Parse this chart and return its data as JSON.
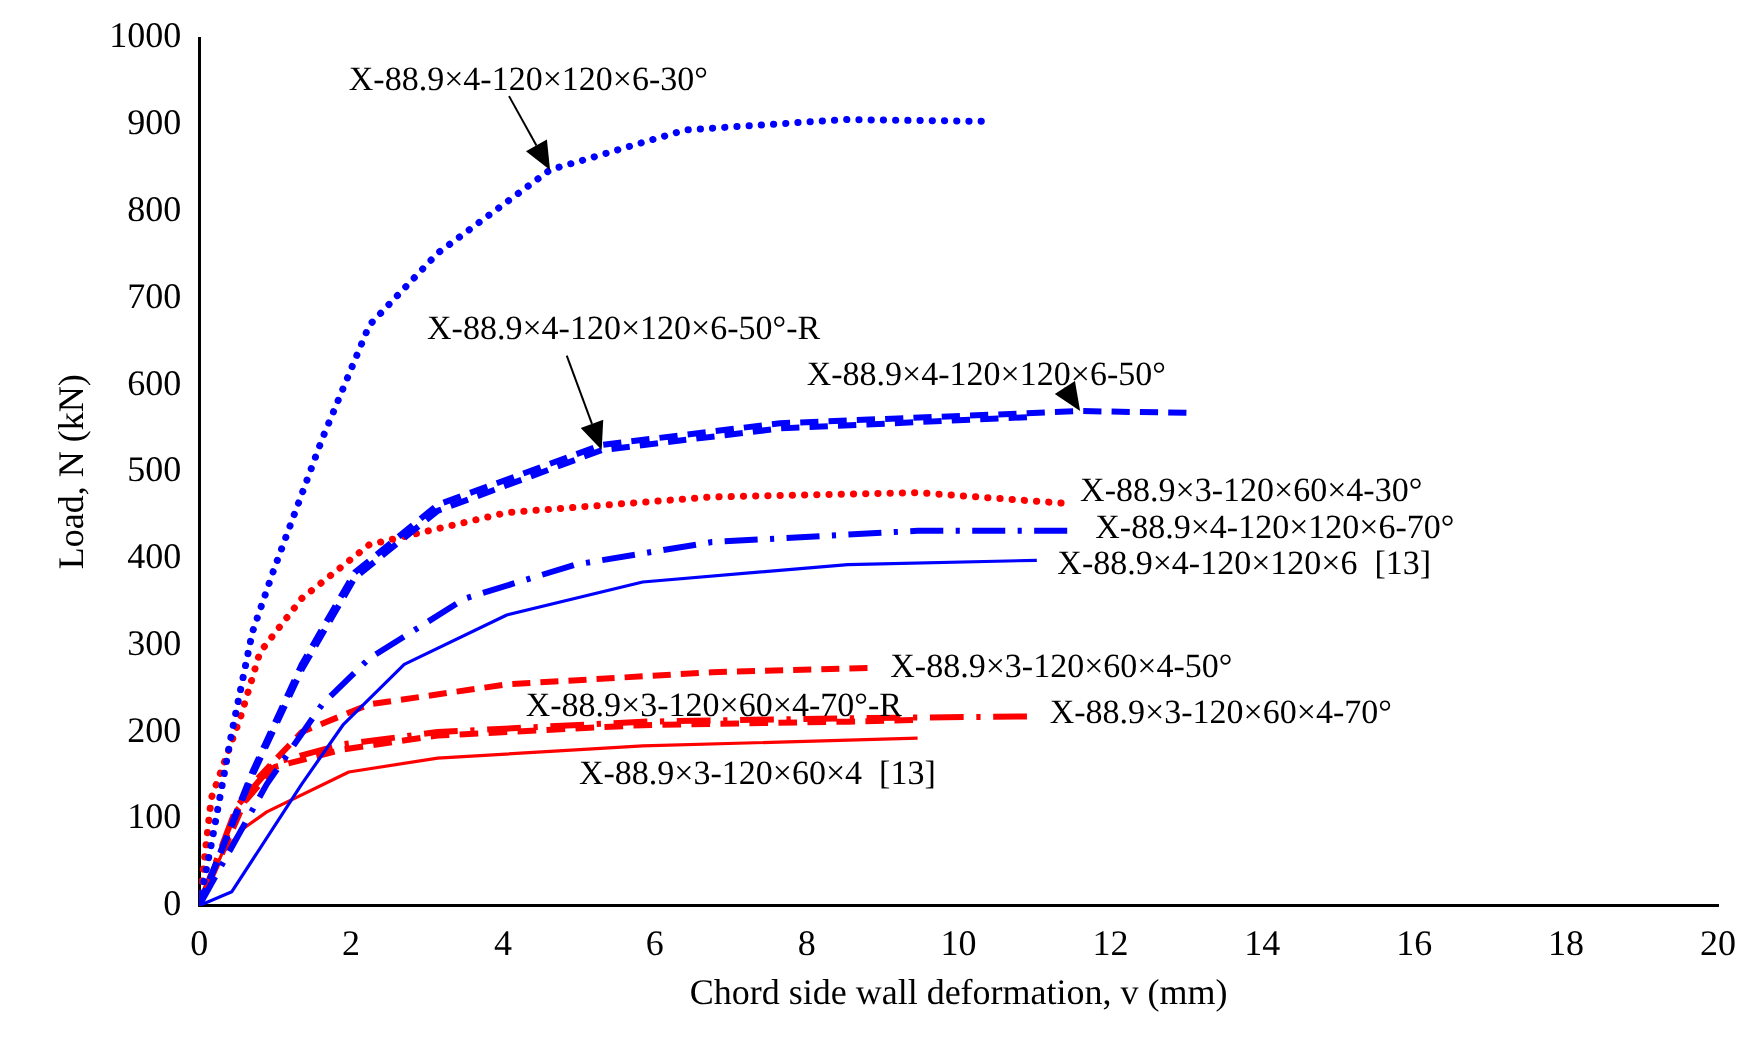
{
  "chart_data": {
    "type": "line",
    "xlabel": "Chord side wall deformation, v (mm)",
    "ylabel": "Load, N (kN)",
    "xlim": [
      0,
      20
    ],
    "xticks": [
      0,
      2,
      4,
      6,
      8,
      10,
      12,
      14,
      16,
      18,
      20
    ],
    "ylim": [
      0,
      1000
    ],
    "yticks": [
      0,
      100,
      200,
      300,
      400,
      500,
      600,
      700,
      800,
      900,
      1000
    ],
    "grid": false,
    "legend": false,
    "marker": "none",
    "series": [
      {
        "name": "X-88.9×4-120×120×6-30°",
        "color": "#0000ff",
        "line_style": "dotted",
        "x": [
          0,
          0.16,
          0.43,
          0.7,
          0.97,
          1.62,
          2.24,
          3.14,
          4.62,
          6.4,
          8.5,
          10.3
        ],
        "values": [
          0,
          71,
          200,
          315,
          384,
          538,
          669,
          752,
          848,
          894,
          906,
          904
        ]
      },
      {
        "name": "X-88.9×4-120×120×6-50°",
        "color": "#0000ff",
        "line_style": "dashed",
        "x": [
          0,
          0.7,
          1.35,
          2.05,
          3.14,
          5.3,
          7.65,
          11.6,
          13
        ],
        "values": [
          0,
          154,
          278,
          384,
          462,
          531,
          556,
          570,
          568
        ]
      },
      {
        "name": "X-88.9×4-120×120×6-50°-R",
        "color": "#0000ff",
        "line_style": "dashed",
        "x": [
          0,
          0.7,
          1.35,
          2.05,
          3.14,
          5.3,
          7.65,
          10.9
        ],
        "values": [
          0,
          150,
          272,
          378,
          455,
          525,
          550,
          563
        ]
      },
      {
        "name": "X-88.9×3-120×60×4-30°",
        "color": "#ff0000",
        "line_style": "dotted",
        "x": [
          0,
          0.16,
          0.54,
          0.8,
          1.35,
          2.24,
          4.05,
          6.75,
          9.46,
          11.35
        ],
        "values": [
          0,
          124,
          216,
          292,
          354,
          416,
          453,
          471,
          476,
          464
        ]
      },
      {
        "name": "X-88.9×4-120×120×6-70°",
        "color": "#0000ff",
        "line_style": "dashdot",
        "x": [
          0,
          0.89,
          1.62,
          2.24,
          3.5,
          4.95,
          6.75,
          9.46,
          11.43
        ],
        "values": [
          0,
          140,
          232,
          285,
          354,
          393,
          419,
          432,
          432
        ]
      },
      {
        "name": "X-88.9×4-120×120×6  [13]",
        "color": "#0000ff",
        "line_style": "solid",
        "x": [
          0,
          0.43,
          1.35,
          1.9,
          2.7,
          4.05,
          5.84,
          8.54,
          11.03
        ],
        "values": [
          0,
          16,
          140,
          209,
          278,
          335,
          373,
          393,
          398
        ]
      },
      {
        "name": "X-88.9×3-120×60×4-50°",
        "color": "#ff0000",
        "line_style": "dashed",
        "x": [
          0,
          0.7,
          1.35,
          2.24,
          4.05,
          6.75,
          8.8
        ],
        "values": [
          0,
          140,
          200,
          232,
          255,
          269,
          274
        ]
      },
      {
        "name": "X-88.9×3-120×60×4-70°",
        "color": "#ff0000",
        "line_style": "dashdot",
        "x": [
          0,
          0.5,
          1.0,
          1.9,
          3.14,
          5.84,
          8.54,
          10.9
        ],
        "values": [
          0,
          115,
          165,
          186,
          200,
          212,
          216,
          218
        ]
      },
      {
        "name": "X-88.9×3-120×60×4-70°-R",
        "color": "#ff0000",
        "line_style": "dashed",
        "x": [
          0,
          0.5,
          1.0,
          1.9,
          3.14,
          5.84,
          8.54,
          9.4
        ],
        "values": [
          0,
          110,
          160,
          180,
          196,
          208,
          212,
          214
        ]
      },
      {
        "name": "X-88.9×3-120×60×4  [13]",
        "color": "#ff0000",
        "line_style": "solid",
        "x": [
          0,
          0.3,
          0.6,
          0.89,
          1.97,
          3.14,
          5.84,
          9.46
        ],
        "values": [
          0,
          60,
          90,
          108,
          154,
          170,
          184,
          193
        ]
      }
    ]
  }
}
